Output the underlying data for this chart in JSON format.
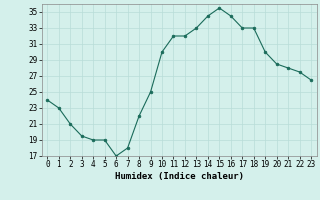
{
  "x": [
    0,
    1,
    2,
    3,
    4,
    5,
    6,
    7,
    8,
    9,
    10,
    11,
    12,
    13,
    14,
    15,
    16,
    17,
    18,
    19,
    20,
    21,
    22,
    23
  ],
  "y": [
    24,
    23,
    21,
    19.5,
    19,
    19,
    17,
    18,
    22,
    25,
    30,
    32,
    32,
    33,
    34.5,
    35.5,
    34.5,
    33,
    33,
    30,
    28.5,
    28,
    27.5,
    26.5
  ],
  "line_color": "#1a6b5a",
  "marker_color": "#1a6b5a",
  "bg_color": "#d4f0eb",
  "grid_color": "#b8ddd8",
  "xlabel": "Humidex (Indice chaleur)",
  "ylim": [
    17,
    36
  ],
  "yticks": [
    17,
    19,
    21,
    23,
    25,
    27,
    29,
    31,
    33,
    35
  ],
  "xticks": [
    0,
    1,
    2,
    3,
    4,
    5,
    6,
    7,
    8,
    9,
    10,
    11,
    12,
    13,
    14,
    15,
    16,
    17,
    18,
    19,
    20,
    21,
    22,
    23
  ],
  "tick_fontsize": 5.5,
  "xlabel_fontsize": 6.5
}
